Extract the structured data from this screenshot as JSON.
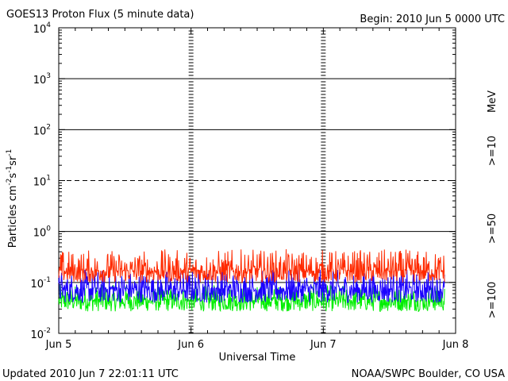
{
  "header": {
    "title": "GOES13 Proton Flux (5 minute data)",
    "begin": "Begin: 2010 Jun 5 0000 UTC"
  },
  "footer": {
    "updated": "Updated 2010 Jun  7 22:01:11 UTC",
    "credit": "NOAA/SWPC Boulder, CO USA"
  },
  "chart_data": {
    "type": "line",
    "title": "GOES13 Proton Flux (5 minute data)",
    "xlabel": "Universal Time",
    "ylabel": "Particles cm-2s-1sr-1",
    "yscale": "log",
    "ylim": [
      0.01,
      10000
    ],
    "xlim": [
      "2010-06-05T00:00",
      "2010-06-08T00:00"
    ],
    "x_ticks": [
      "Jun 5",
      "Jun 6",
      "Jun 7",
      "Jun 8"
    ],
    "y_ticks": [
      {
        "base": "10",
        "exp": "4"
      },
      {
        "base": "10",
        "exp": "3"
      },
      {
        "base": "10",
        "exp": "2"
      },
      {
        "base": "10",
        "exp": "1"
      },
      {
        "base": "10",
        "exp": "0"
      },
      {
        "base": "10",
        "exp": "-1"
      },
      {
        "base": "10",
        "exp": "-2"
      }
    ],
    "unit_label": "MeV",
    "grid": "horizontal solid lines at 10^3, 10^2, 10^0, 10^-1; dashed at 10^1",
    "data_end": "2010-06-07T22:00",
    "series": [
      {
        "name": ">=10",
        "color": "#ff2a00",
        "typical": 0.17,
        "min": 0.1,
        "max": 0.45
      },
      {
        "name": ">=50",
        "color": "#1a00ff",
        "typical": 0.075,
        "min": 0.04,
        "max": 0.18
      },
      {
        "name": ">=100",
        "color": "#00ee00",
        "typical": 0.045,
        "min": 0.027,
        "max": 0.09
      }
    ]
  }
}
